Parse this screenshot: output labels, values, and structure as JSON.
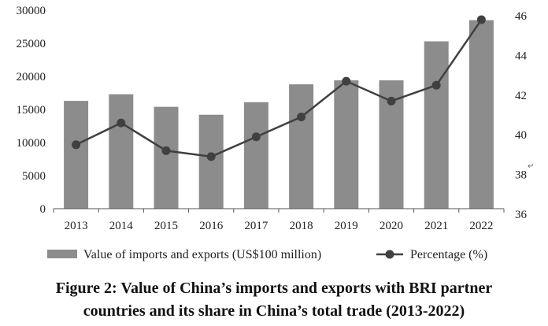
{
  "chart_data": {
    "type": "bar",
    "categories": [
      "2013",
      "2014",
      "2015",
      "2016",
      "2017",
      "2018",
      "2019",
      "2020",
      "2021",
      "2022"
    ],
    "series": [
      {
        "name": "Value of imports and exports (US$100 million)",
        "type": "bar",
        "axis": "left",
        "values": [
          16300,
          17300,
          15400,
          14200,
          16100,
          18800,
          19400,
          19400,
          25300,
          28500
        ]
      },
      {
        "name": "Percentage (%)",
        "type": "line",
        "axis": "right",
        "values": [
          39.5,
          40.6,
          39.2,
          38.9,
          39.9,
          40.9,
          42.7,
          41.7,
          42.5,
          45.8
        ]
      }
    ],
    "y_left": {
      "lim": [
        0,
        30000
      ],
      "ticks": [
        "0",
        "5000",
        "10000",
        "15000",
        "20000",
        "25000",
        "30000"
      ]
    },
    "y_right": {
      "lim": [
        36,
        46
      ],
      "ticks": [
        "36",
        "38",
        "40",
        "42",
        "44",
        "46"
      ]
    },
    "title": "",
    "grid": false,
    "legend": "bottom",
    "colors": {
      "bar": "#8c8c8c",
      "line": "#404040",
      "axis": "#555555"
    }
  },
  "caption": {
    "line1": "Figure 2: Value of China’s imports and exports with BRI partner",
    "line2": "countries and its share in China’s total trade (2013-2022)"
  },
  "stray_mark": "↵"
}
